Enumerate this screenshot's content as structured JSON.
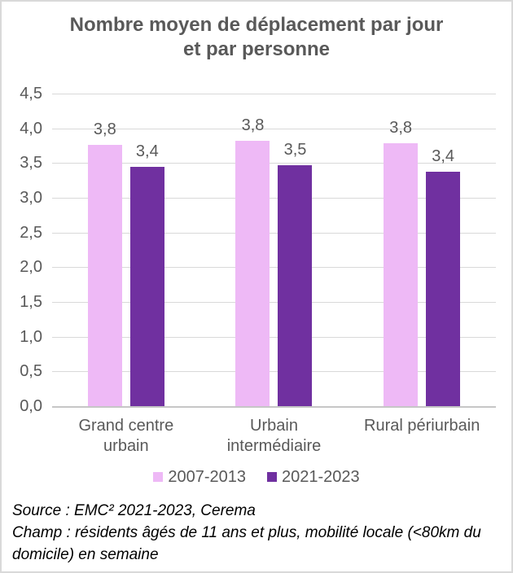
{
  "title": {
    "lines": [
      "Nombre moyen de déplacement par jour",
      "et par personne"
    ]
  },
  "chart_data": {
    "type": "bar",
    "title": "Nombre moyen de déplacement par jour et par personne",
    "categories": [
      "Grand centre urbain",
      "Urbain intermédiaire",
      "Rural périurbain"
    ],
    "categories_display": [
      [
        "Grand centre",
        "urbain"
      ],
      [
        "Urbain",
        "intermédiaire"
      ],
      [
        "Rural périurbain"
      ]
    ],
    "series": [
      {
        "name": "2007-2013",
        "color": "#eeb9f6",
        "values": [
          3.8,
          3.8,
          3.8
        ],
        "labels": [
          "3,8",
          "3,8",
          "3,8"
        ],
        "values_precise": [
          3.76,
          3.82,
          3.79
        ]
      },
      {
        "name": "2021-2023",
        "color": "#7030a0",
        "values": [
          3.4,
          3.5,
          3.4
        ],
        "labels": [
          "3,4",
          "3,5",
          "3,4"
        ],
        "values_precise": [
          3.44,
          3.47,
          3.38
        ]
      }
    ],
    "xlabel": "",
    "ylabel": "",
    "ylim": [
      0,
      4.5
    ],
    "ytick_step": 0.5,
    "ytick_labels": [
      "0,0",
      "0,5",
      "1,0",
      "1,5",
      "2,0",
      "2,5",
      "3,0",
      "3,5",
      "4,0",
      "4,5"
    ],
    "grid": true,
    "legend_position": "bottom",
    "colors": {
      "text_gray": "#595959",
      "gridline": "#d9d9d9",
      "axis_line": "#c6c6c6",
      "border": "#d9d9d9"
    }
  },
  "source": {
    "line1": "Source : EMC² 2021-2023, Cerema",
    "line2": "Champ : résidents âgés de 11 ans et plus, mobilité locale (<80km du",
    "line3": "domicile) en semaine"
  }
}
